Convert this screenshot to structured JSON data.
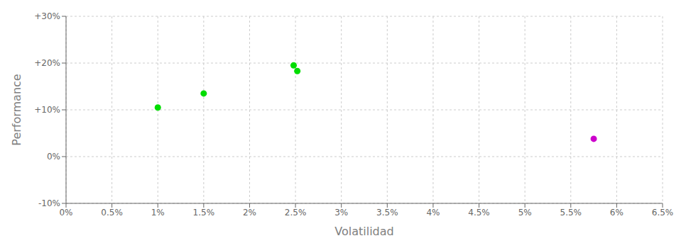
{
  "chart_data": {
    "type": "scatter",
    "x_label": "Volatilidad",
    "y_label": "Performance",
    "xlim": [
      0.0,
      0.065
    ],
    "ylim": [
      -0.1,
      0.3
    ],
    "xticks": [
      {
        "value": 0.0,
        "label": "0%"
      },
      {
        "value": 0.005,
        "label": "0.5%"
      },
      {
        "value": 0.01,
        "label": "1%"
      },
      {
        "value": 0.015,
        "label": "1.5%"
      },
      {
        "value": 0.02,
        "label": "2%"
      },
      {
        "value": 0.025,
        "label": "2.5%"
      },
      {
        "value": 0.03,
        "label": "3%"
      },
      {
        "value": 0.035,
        "label": "3.5%"
      },
      {
        "value": 0.04,
        "label": "4%"
      },
      {
        "value": 0.045,
        "label": "4.5%"
      },
      {
        "value": 0.05,
        "label": "5%"
      },
      {
        "value": 0.055,
        "label": "5.5%"
      },
      {
        "value": 0.06,
        "label": "6%"
      },
      {
        "value": 0.065,
        "label": "6.5%"
      }
    ],
    "yticks": [
      {
        "value": -0.1,
        "label": "-10%"
      },
      {
        "value": 0.0,
        "label": "0%"
      },
      {
        "value": 0.1,
        "label": "+10%"
      },
      {
        "value": 0.2,
        "label": "+20%"
      },
      {
        "value": 0.3,
        "label": "+30%"
      }
    ],
    "grid": true,
    "series": [
      {
        "color": "#00dd00",
        "x": [
          0.01,
          0.015,
          0.0248,
          0.0252
        ],
        "values": [
          0.105,
          0.135,
          0.195,
          0.183
        ]
      },
      {
        "color": "#cc00cc",
        "x": [
          0.0575
        ],
        "values": [
          0.038
        ]
      }
    ]
  }
}
